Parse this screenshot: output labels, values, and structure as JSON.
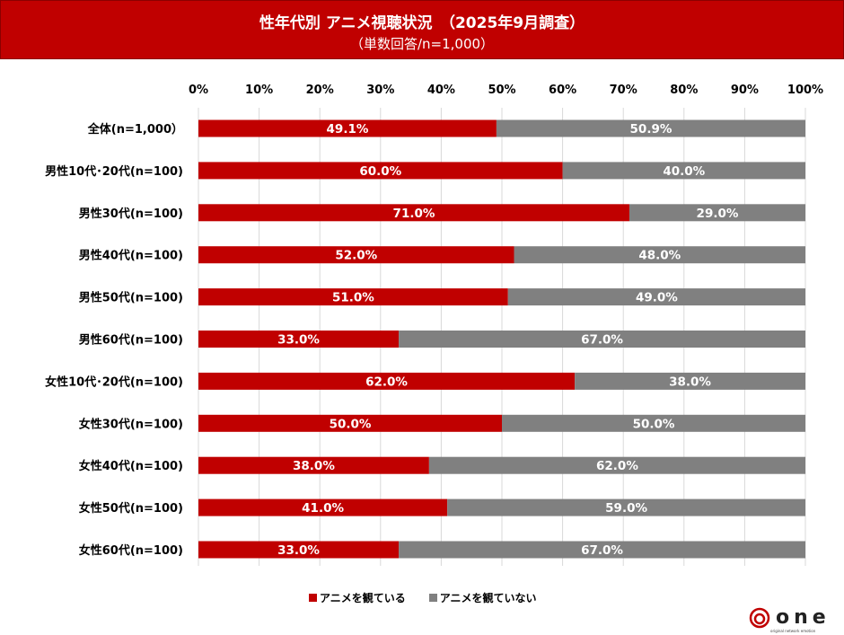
{
  "chart_data": {
    "type": "bar",
    "stacked": true,
    "orientation": "horizontal",
    "title": "性年代別 アニメ視聴状況　（2025年9月調査）",
    "subtitle": "（単数回答/n=1,000）",
    "xlim": [
      0,
      100
    ],
    "x_ticks": [
      "0%",
      "10%",
      "20%",
      "30%",
      "40%",
      "50%",
      "60%",
      "70%",
      "80%",
      "90%",
      "100%"
    ],
    "grid": true,
    "legend_position": "bottom",
    "categories": [
      "全体(n=1,000）",
      "男性10代･20代(n=100)",
      "男性30代(n=100)",
      "男性40代(n=100)",
      "男性50代(n=100)",
      "男性60代(n=100)",
      "女性10代･20代(n=100)",
      "女性30代(n=100)",
      "女性40代(n=100)",
      "女性50代(n=100)",
      "女性60代(n=100)"
    ],
    "series": [
      {
        "name": "アニメを観ている",
        "color": "#c00000",
        "values": [
          49.1,
          60.0,
          71.0,
          52.0,
          51.0,
          33.0,
          62.0,
          50.0,
          38.0,
          41.0,
          33.0
        ]
      },
      {
        "name": "アニメを観ていない",
        "color": "#808080",
        "values": [
          50.9,
          40.0,
          29.0,
          48.0,
          49.0,
          67.0,
          38.0,
          50.0,
          62.0,
          59.0,
          67.0
        ]
      }
    ]
  },
  "logo": {
    "text": "one",
    "tagline": "original network emotion"
  }
}
